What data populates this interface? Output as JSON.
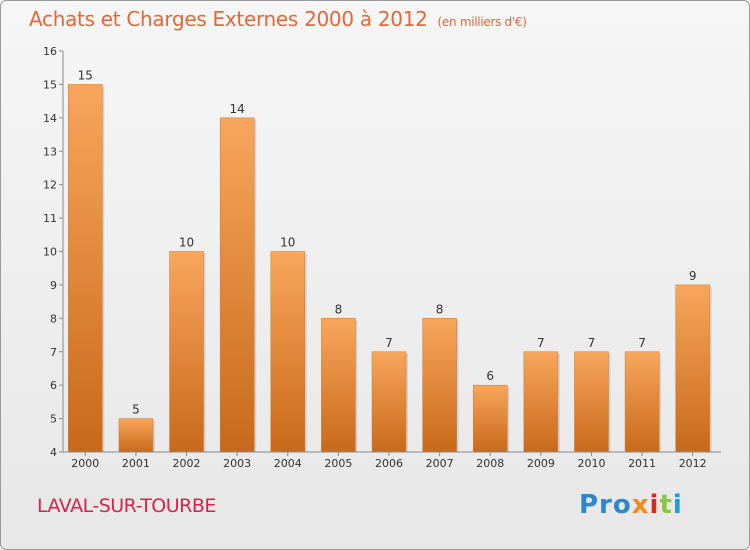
{
  "header": {
    "title": "Achats et Charges Externes 2000 à 2012",
    "unit": "(en milliers d'€)"
  },
  "footer": {
    "commune": "LAVAL-SUR-TOURBE",
    "logo": [
      "Pro",
      "x",
      "i",
      "t",
      "i"
    ]
  },
  "colors": {
    "bar_top": "#f7a65c",
    "bar_bottom": "#c8691a",
    "title": "#e0683a",
    "commune": "#d9214d"
  },
  "chart_data": {
    "type": "bar",
    "categories": [
      "2000",
      "2001",
      "2002",
      "2003",
      "2004",
      "2005",
      "2006",
      "2007",
      "2008",
      "2009",
      "2010",
      "2011",
      "2012"
    ],
    "values": [
      15,
      5,
      10,
      14,
      10,
      8,
      7,
      8,
      6,
      7,
      7,
      7,
      9
    ],
    "data_labels": [
      "15",
      "5",
      "10",
      "14",
      "10",
      "8",
      "7",
      "8",
      "6",
      "7",
      "7",
      "7",
      "9"
    ],
    "title": "Achats et Charges Externes 2000 à 2012",
    "subtitle": "(en milliers d'€)",
    "xlabel": "",
    "ylabel": "",
    "ylim": [
      4,
      16
    ],
    "yticks": [
      "4",
      "5",
      "6",
      "7",
      "8",
      "9",
      "10",
      "11",
      "12",
      "13",
      "14",
      "15",
      "16"
    ],
    "grid": false,
    "legend": "none"
  }
}
